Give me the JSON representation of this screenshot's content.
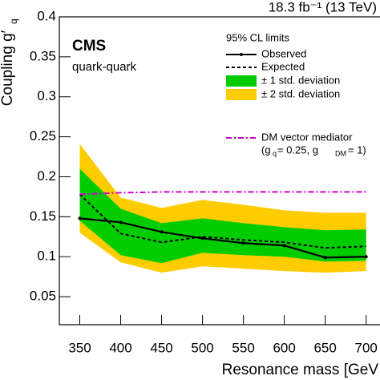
{
  "chart_data": {
    "type": "line",
    "title": "18.3 fb⁻¹ (13 TeV)",
    "experiment": "CMS",
    "subtitle": "quark-quark",
    "x_label": "Resonance mass [GeV",
    "y_label": "Coupling g′",
    "y_label_sub": "q",
    "legend_header": "95% CL limits",
    "x": [
      350,
      400,
      450,
      500,
      550,
      600,
      650,
      700
    ],
    "xlim": [
      325,
      715
    ],
    "xticks": [
      350,
      400,
      450,
      500,
      550,
      600,
      650,
      700
    ],
    "ylim": [
      0.015,
      0.4
    ],
    "yticks": [
      0.05,
      0.1,
      0.15,
      0.2,
      0.25,
      0.3,
      0.35,
      0.4
    ],
    "bands": [
      {
        "name": "± 2 std. deviation",
        "color": "#ffcc00",
        "lower": [
          0.13,
          0.093,
          0.08,
          0.088,
          0.085,
          0.082,
          0.08,
          0.082
        ],
        "upper": [
          0.241,
          0.174,
          0.161,
          0.171,
          0.165,
          0.158,
          0.155,
          0.155
        ]
      },
      {
        "name": "± 1 std. deviation",
        "color": "#00cc00",
        "lower": [
          0.145,
          0.102,
          0.092,
          0.105,
          0.102,
          0.1,
          0.094,
          0.095
        ],
        "upper": [
          0.21,
          0.16,
          0.142,
          0.148,
          0.142,
          0.137,
          0.133,
          0.134
        ]
      }
    ],
    "series": [
      {
        "name": "Observed",
        "color": "#000000",
        "style": "solid",
        "markers": true,
        "values": [
          0.148,
          0.143,
          0.131,
          0.123,
          0.117,
          0.114,
          0.099,
          0.1
        ]
      },
      {
        "name": "Expected",
        "color": "#000000",
        "style": "dotted",
        "markers": false,
        "values": [
          0.178,
          0.129,
          0.118,
          0.125,
          0.121,
          0.118,
          0.111,
          0.113
        ]
      },
      {
        "name": "DM vector mediator",
        "color": "#cc00cc",
        "style": "dashdot",
        "markers": false,
        "values": [
          0.178,
          0.18,
          0.181,
          0.181,
          0.181,
          0.181,
          0.181,
          0.181
        ]
      }
    ],
    "dm_note": [
      "(g",
      "q",
      " = 0.25, g",
      "DM",
      " = 1)"
    ]
  }
}
